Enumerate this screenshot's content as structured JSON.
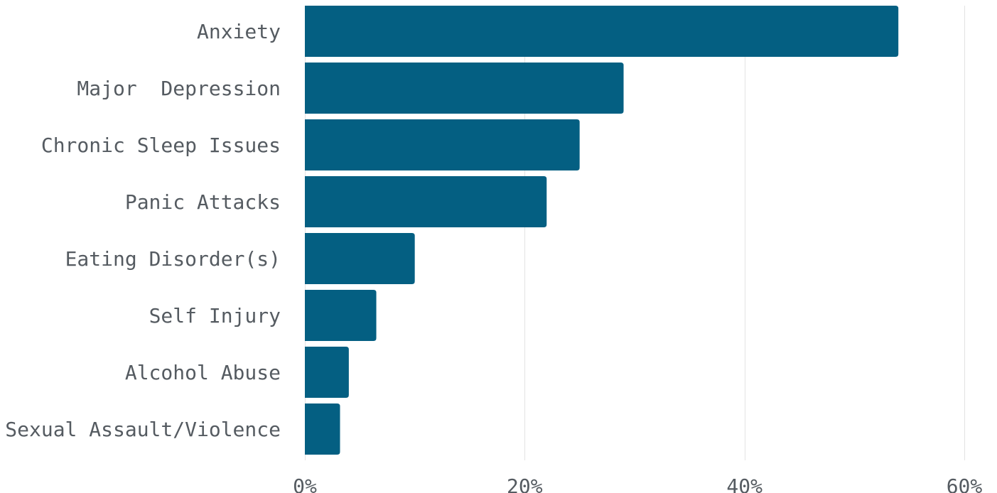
{
  "chart_data": {
    "type": "bar",
    "orientation": "horizontal",
    "categories": [
      "Anxiety",
      "Major  Depression",
      "Chronic Sleep Issues",
      "Panic Attacks",
      "Eating Disorder(s)",
      "Self Injury",
      "Alcohol Abuse",
      "Sexual Assault/Violence"
    ],
    "values": [
      54,
      29,
      25,
      22,
      10,
      6.5,
      4,
      3.2
    ],
    "xlim": [
      0,
      60
    ],
    "x_ticks": [
      0,
      20,
      40,
      60
    ],
    "x_tick_labels": [
      "0%",
      "20%",
      "40%",
      "60%"
    ],
    "title": "",
    "xlabel": "",
    "ylabel": "",
    "grid": true,
    "bar_color": "#045f82",
    "text_color": "#555b61",
    "grid_color": "#e3e3e3"
  }
}
